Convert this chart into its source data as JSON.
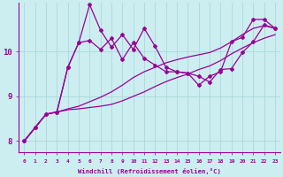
{
  "xlabel": "Windchill (Refroidissement éolien,°C)",
  "bg_color": "#cceef0",
  "grid_color": "#aad8dc",
  "line_color": "#990099",
  "xlim": [
    -0.5,
    23.5
  ],
  "ylim": [
    7.75,
    11.1
  ],
  "yticks": [
    8,
    9,
    10
  ],
  "xticks": [
    0,
    1,
    2,
    3,
    4,
    5,
    6,
    7,
    8,
    9,
    10,
    11,
    12,
    13,
    14,
    15,
    16,
    17,
    18,
    19,
    20,
    21,
    22,
    23
  ],
  "series_smooth": [
    [
      8.0,
      8.3,
      8.6,
      8.65,
      8.7,
      8.72,
      8.75,
      8.78,
      8.82,
      8.9,
      9.0,
      9.1,
      9.22,
      9.33,
      9.42,
      9.5,
      9.6,
      9.68,
      9.8,
      9.95,
      10.08,
      10.2,
      10.3,
      10.38
    ],
    [
      8.0,
      8.3,
      8.6,
      8.65,
      8.72,
      8.78,
      8.88,
      8.98,
      9.1,
      9.25,
      9.42,
      9.55,
      9.65,
      9.75,
      9.82,
      9.88,
      9.93,
      9.98,
      10.08,
      10.22,
      10.38,
      10.52,
      10.58,
      10.52
    ]
  ],
  "series_marked": [
    [
      8.0,
      8.3,
      8.6,
      8.65,
      9.65,
      10.2,
      10.25,
      10.05,
      10.3,
      9.82,
      10.2,
      9.85,
      9.7,
      9.55,
      9.55,
      9.52,
      9.45,
      9.32,
      9.6,
      9.62,
      9.98,
      10.22,
      10.6,
      10.52
    ],
    [
      8.0,
      8.3,
      8.6,
      8.65,
      9.65,
      10.2,
      11.05,
      10.48,
      10.1,
      10.38,
      10.05,
      10.52,
      10.12,
      9.65,
      9.55,
      9.52,
      9.25,
      9.45,
      9.55,
      10.22,
      10.32,
      10.72,
      10.72,
      10.52
    ]
  ]
}
